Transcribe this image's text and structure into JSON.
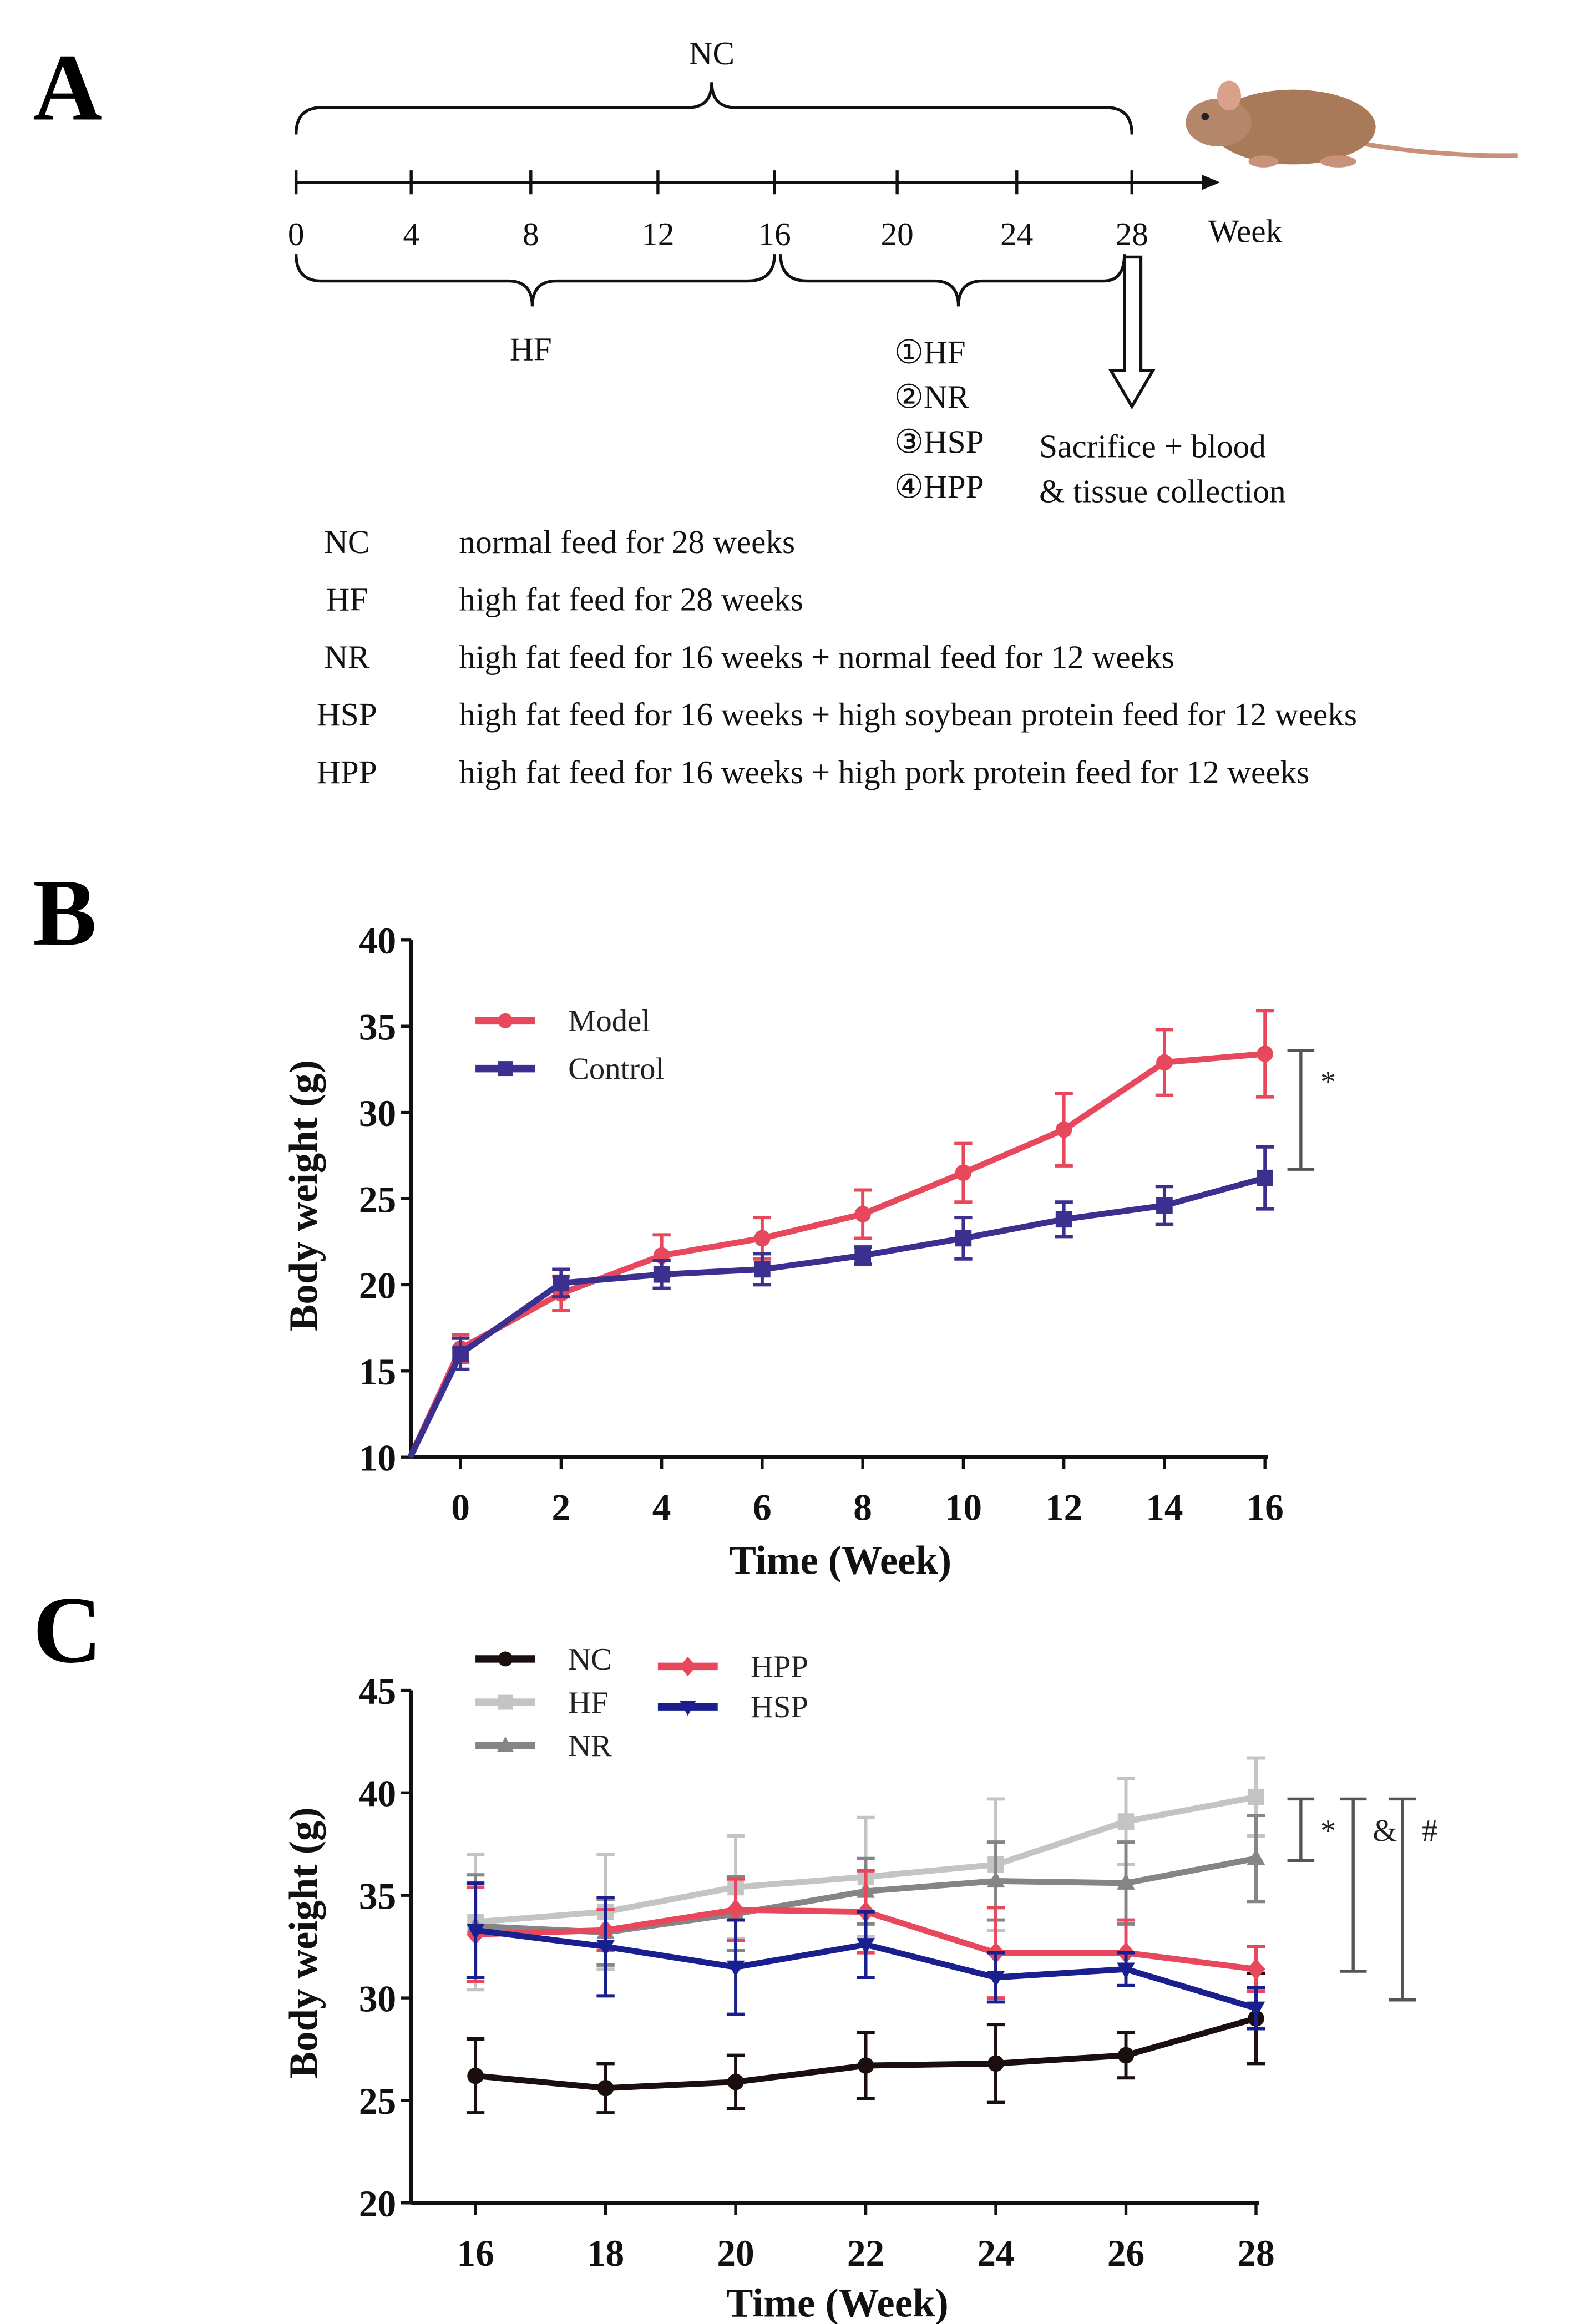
{
  "panel_labels": {
    "a": "A",
    "b": "B",
    "c": "C"
  },
  "timeline": {
    "weeks": [
      "0",
      "4",
      "8",
      "12",
      "16",
      "20",
      "24",
      "28"
    ],
    "unit": "Week",
    "nc_label": "NC",
    "hf_label": "HF",
    "groups": [
      "①HF",
      "②NR",
      "③HSP",
      "④HPP"
    ],
    "endpoint": [
      "Sacrifice + blood",
      "& tissue collection"
    ],
    "icon": "mouse-illustration"
  },
  "groups_table": [
    {
      "abbr": "NC",
      "desc": "normal feed for 28 weeks"
    },
    {
      "abbr": "HF",
      "desc": "high fat feed for 28 weeks"
    },
    {
      "abbr": "NR",
      "desc": "high fat feed for 16 weeks + normal feed for 12 weeks"
    },
    {
      "abbr": "HSP",
      "desc": "high fat feed for 16 weeks + high soybean protein feed for 12 weeks"
    },
    {
      "abbr": "HPP",
      "desc": "high fat feed for 16 weeks + high pork protein feed for 12 weeks"
    }
  ],
  "chart_data": [
    {
      "type": "line",
      "title": "B",
      "xlabel": "Time (Week)",
      "ylabel": "Body weight (g)",
      "ylim": [
        10,
        40
      ],
      "xlim": [
        -1,
        16
      ],
      "xticks": [
        0,
        2,
        4,
        6,
        8,
        10,
        12,
        14,
        16
      ],
      "yticks": [
        10,
        15,
        20,
        25,
        30,
        35,
        40
      ],
      "legend": "top-left",
      "series": [
        {
          "name": "Model",
          "color": "#e8485c",
          "marker": "circle",
          "x": [
            -1,
            0,
            2,
            4,
            6,
            8,
            10,
            12,
            14,
            16
          ],
          "values": [
            10,
            16.3,
            19.5,
            21.7,
            22.7,
            24.1,
            26.5,
            29.0,
            32.9,
            33.4
          ],
          "err": [
            0,
            0.8,
            1.0,
            1.2,
            1.2,
            1.4,
            1.7,
            2.1,
            1.9,
            2.5
          ]
        },
        {
          "name": "Control",
          "color": "#3b2f8f",
          "marker": "square",
          "x": [
            -1,
            0,
            2,
            4,
            6,
            8,
            10,
            12,
            14,
            16
          ],
          "values": [
            10,
            16.0,
            20.1,
            20.6,
            20.9,
            21.7,
            22.7,
            23.8,
            24.6,
            26.2
          ],
          "err": [
            0,
            0.9,
            0.8,
            0.8,
            0.9,
            0.5,
            1.2,
            1.0,
            1.1,
            1.8
          ]
        }
      ],
      "annotations": [
        {
          "text": "*",
          "from": 26.7,
          "to": 33.6
        }
      ]
    },
    {
      "type": "line",
      "title": "C",
      "xlabel": "Time (Week)",
      "ylabel": "Body weight (g)",
      "ylim": [
        20,
        45
      ],
      "xlim": [
        16,
        28
      ],
      "xticks": [
        16,
        18,
        20,
        22,
        24,
        26,
        28
      ],
      "yticks": [
        20,
        25,
        30,
        35,
        40,
        45
      ],
      "legend": "top-left",
      "series": [
        {
          "name": "NC",
          "color": "#1a0e0e",
          "marker": "circle",
          "x": [
            16,
            18,
            20,
            22,
            24,
            26,
            28
          ],
          "values": [
            26.2,
            25.6,
            25.9,
            26.7,
            26.8,
            27.2,
            29.0
          ],
          "err": [
            1.8,
            1.2,
            1.3,
            1.6,
            1.9,
            1.1,
            2.2
          ]
        },
        {
          "name": "HF",
          "color": "#c4c4c4",
          "marker": "square",
          "x": [
            16,
            18,
            20,
            22,
            24,
            26,
            28
          ],
          "values": [
            33.7,
            34.2,
            35.4,
            35.9,
            36.5,
            38.6,
            39.8
          ],
          "err": [
            3.3,
            2.8,
            2.5,
            2.9,
            3.2,
            2.1,
            1.9
          ]
        },
        {
          "name": "NR",
          "color": "#858585",
          "marker": "triangle",
          "x": [
            16,
            18,
            20,
            22,
            24,
            26,
            28
          ],
          "values": [
            33.5,
            33.2,
            34.1,
            35.2,
            35.7,
            35.6,
            36.8
          ],
          "err": [
            2.5,
            1.6,
            1.8,
            1.6,
            1.9,
            2.0,
            2.1
          ]
        },
        {
          "name": "HPP",
          "color": "#e8485c",
          "marker": "diamond",
          "x": [
            16,
            18,
            20,
            22,
            24,
            26,
            28
          ],
          "values": [
            33.1,
            33.3,
            34.3,
            34.2,
            32.2,
            32.2,
            31.4
          ],
          "err": [
            2.3,
            1.0,
            1.5,
            2.0,
            2.2,
            1.6,
            1.1
          ]
        },
        {
          "name": "HSP",
          "color": "#1a1f8f",
          "marker": "triangle-down",
          "x": [
            16,
            18,
            20,
            22,
            24,
            26,
            28
          ],
          "values": [
            33.3,
            32.5,
            31.5,
            32.6,
            31.0,
            31.4,
            29.5
          ],
          "err": [
            2.3,
            2.4,
            2.3,
            1.6,
            1.2,
            0.8,
            1.0
          ]
        }
      ],
      "annotations": [
        {
          "text": "*",
          "from": 36.7,
          "to": 39.7
        },
        {
          "text": "&",
          "from": 31.3,
          "to": 39.7
        },
        {
          "text": "#",
          "from": 29.9,
          "to": 39.7
        }
      ]
    }
  ]
}
